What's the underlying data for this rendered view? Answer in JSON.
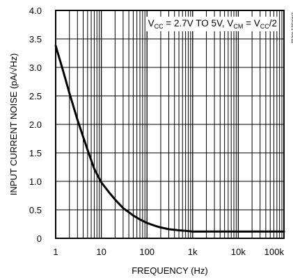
{
  "chart_data": {
    "type": "line",
    "title": "",
    "xlabel": "FREQUENCY (Hz)",
    "ylabel": "INPUT CURRENT NOISE (pA/√Hz)",
    "xscale": "log",
    "xlim": [
      1,
      100000
    ],
    "ylim": [
      0,
      4.0
    ],
    "x_tick_labels": [
      "1",
      "10",
      "100",
      "1k",
      "10k",
      "100k"
    ],
    "x_tick_values": [
      1,
      10,
      100,
      1000,
      10000,
      100000
    ],
    "y_tick_labels": [
      "0",
      "0.5",
      "1.0",
      "1.5",
      "2.0",
      "2.5",
      "3.0",
      "3.5",
      "4.0"
    ],
    "y_tick_values": [
      0,
      0.5,
      1.0,
      1.5,
      2.0,
      2.5,
      3.0,
      3.5,
      4.0
    ],
    "grid": true,
    "annotation": {
      "v1": "V",
      "s1": "CC",
      "t1": " = 2.7V TO 5V, V",
      "s2": "CM",
      "t2": " = V",
      "s3": "CC",
      "t3": "/2"
    },
    "side_id": "LMX321 toc11",
    "series": [
      {
        "color": "#000000",
        "x": [
          1,
          1.5,
          2,
          3,
          4,
          5,
          7,
          10,
          15,
          20,
          30,
          50,
          70,
          100,
          150,
          200,
          300,
          500,
          700,
          1000,
          2000,
          5000,
          10000,
          100000
        ],
        "y": [
          3.38,
          2.9,
          2.55,
          2.08,
          1.78,
          1.55,
          1.22,
          0.98,
          0.8,
          0.68,
          0.53,
          0.4,
          0.33,
          0.27,
          0.22,
          0.19,
          0.16,
          0.14,
          0.13,
          0.12,
          0.12,
          0.12,
          0.12,
          0.12
        ]
      }
    ]
  }
}
